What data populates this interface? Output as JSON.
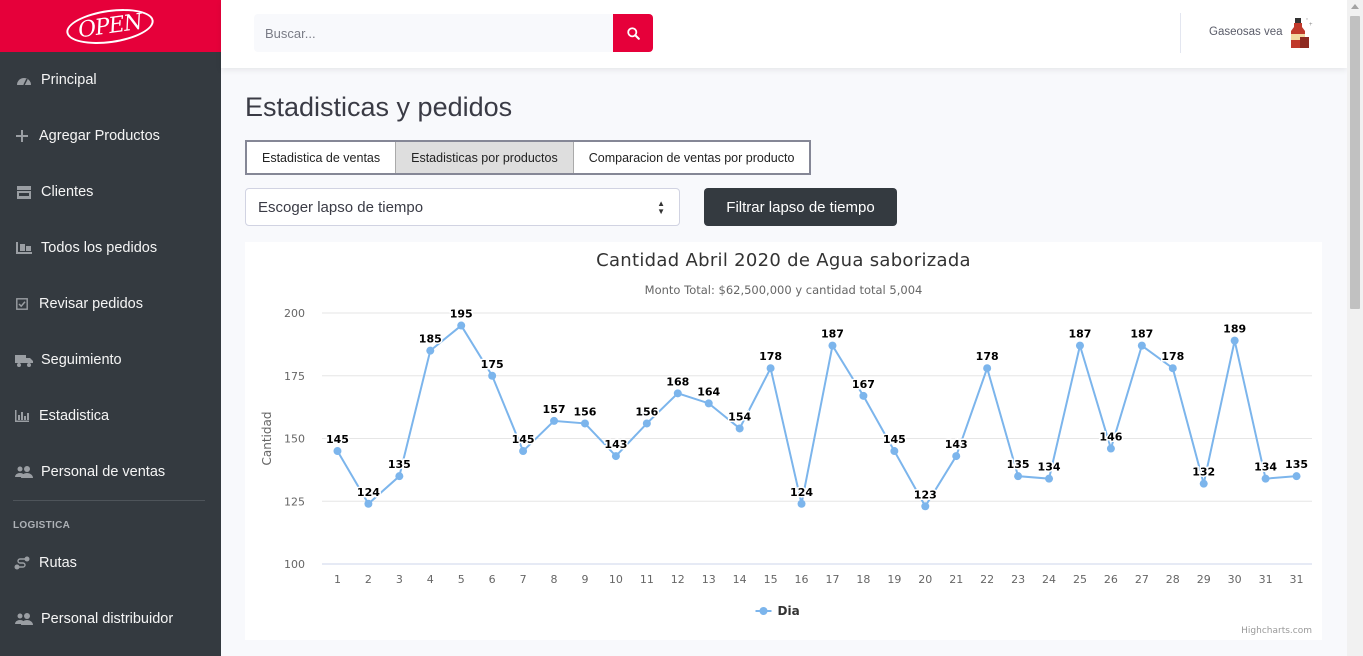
{
  "brand": {
    "logo_text": "OPEN"
  },
  "sidebar": {
    "items": [
      {
        "label": "Principal",
        "icon": "dashboard-icon"
      },
      {
        "label": "Agregar Productos",
        "icon": "plus-icon"
      },
      {
        "label": "Clientes",
        "icon": "store-icon"
      },
      {
        "label": "Todos los pedidos",
        "icon": "dolly-icon"
      },
      {
        "label": "Revisar pedidos",
        "icon": "check-square-icon"
      },
      {
        "label": "Seguimiento",
        "icon": "truck-icon"
      },
      {
        "label": "Estadistica",
        "icon": "bar-chart-icon"
      },
      {
        "label": "Personal de ventas",
        "icon": "users-icon"
      }
    ],
    "heading": "LOGISTICA",
    "logistics_items": [
      {
        "label": "Rutas",
        "icon": "route-icon"
      },
      {
        "label": "Personal distribuidor",
        "icon": "users-icon"
      }
    ]
  },
  "topbar": {
    "search_placeholder": "Buscar...",
    "user_name": "Gaseosas vea"
  },
  "main": {
    "title": "Estadisticas y pedidos",
    "tabs": [
      {
        "label": "Estadistica de ventas",
        "active": false
      },
      {
        "label": "Estadisticas por productos",
        "active": true
      },
      {
        "label": "Comparacion de ventas por producto",
        "active": false
      }
    ],
    "select_value": "Escoger lapso de tiempo",
    "filter_button": "Filtrar lapso de tiempo"
  },
  "chart_data": {
    "type": "line",
    "title": "Cantidad Abril 2020 de Agua saborizada",
    "subtitle": "Monto Total: $62,500,000 y cantidad total 5,004",
    "ylabel": "Cantidad",
    "xlabel": "",
    "ylim": [
      100,
      200
    ],
    "yticks": [
      100,
      125,
      150,
      175,
      200
    ],
    "categories": [
      "1",
      "2",
      "3",
      "4",
      "5",
      "6",
      "7",
      "8",
      "9",
      "10",
      "11",
      "12",
      "13",
      "14",
      "15",
      "16",
      "17",
      "18",
      "19",
      "20",
      "21",
      "22",
      "23",
      "24",
      "25",
      "26",
      "27",
      "28",
      "29",
      "30",
      "31",
      "31"
    ],
    "series": [
      {
        "name": "Dia",
        "color": "#7cb5ec",
        "values": [
          145,
          124,
          135,
          185,
          195,
          175,
          145,
          157,
          156,
          143,
          156,
          168,
          164,
          154,
          178,
          124,
          187,
          167,
          145,
          123,
          143,
          178,
          135,
          134,
          187,
          146,
          187,
          178,
          132,
          189,
          134,
          135
        ]
      }
    ],
    "legend_position": "bottom-center",
    "grid": true,
    "credits": "Highcharts.com"
  }
}
